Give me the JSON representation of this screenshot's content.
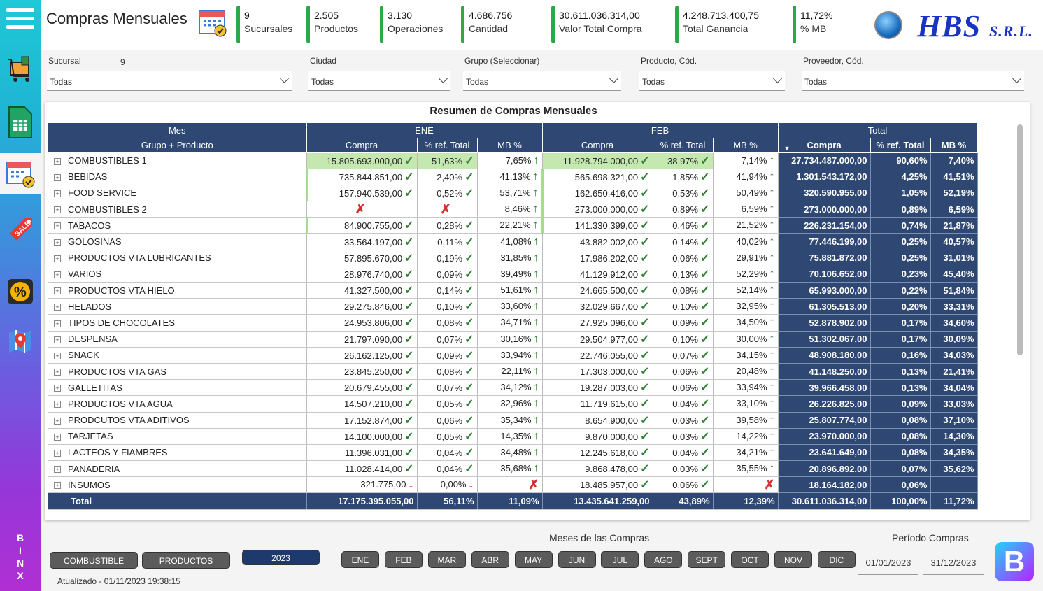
{
  "header": {
    "title": "Compras Mensuales",
    "kpis": [
      {
        "value": "9",
        "label": "Sucursales"
      },
      {
        "value": "2.505",
        "label": "Productos"
      },
      {
        "value": "3.130",
        "label": "Operaciones"
      },
      {
        "value": "4.686.756",
        "label": "Cantidad"
      },
      {
        "value": "30.611.036.314,00",
        "label": "Valor Total Compra"
      },
      {
        "value": "4.248.713.400,75",
        "label": "Total Ganancia"
      },
      {
        "value": "11,72%",
        "label": "% MB"
      }
    ],
    "logo": "HBS",
    "logo_suffix": "S.R.L."
  },
  "filters": [
    {
      "label": "Sucursal",
      "count": "9",
      "value": "Todas"
    },
    {
      "label": "Ciudad",
      "value": "Todas"
    },
    {
      "label": "Grupo (Seleccionar)",
      "value": "Todas"
    },
    {
      "label": "Producto, Cód.",
      "value": "Todas"
    },
    {
      "label": "Proveedor, Cód.",
      "value": "Todas"
    }
  ],
  "table": {
    "title": "Resumen de Compras Mensuales",
    "col_mes": "Mes",
    "col_group": "Grupo + Producto",
    "months": [
      "ENE",
      "FEB"
    ],
    "total_label": "Total",
    "sub": [
      "Compra",
      "% ref. Total",
      "MB %"
    ],
    "rows": [
      [
        "COMBUSTIBLES 1",
        "15.805.693.000,00",
        "51,63%",
        "7,65%",
        "11.928.794.000,00",
        "38,97%",
        "7,14%",
        "27.734.487.000,00",
        "90,60%",
        "7,40%"
      ],
      [
        "BEBIDAS",
        "735.844.851,00",
        "2,40%",
        "41,13%",
        "565.698.321,00",
        "1,85%",
        "41,94%",
        "1.301.543.172,00",
        "4,25%",
        "41,51%"
      ],
      [
        "FOOD SERVICE",
        "157.940.539,00",
        "0,52%",
        "53,71%",
        "162.650.416,00",
        "0,53%",
        "50,49%",
        "320.590.955,00",
        "1,05%",
        "52,19%"
      ],
      [
        "COMBUSTIBLES 2",
        "",
        "",
        "8,46%",
        "273.000.000,00",
        "0,89%",
        "6,59%",
        "273.000.000,00",
        "0,89%",
        "6,59%"
      ],
      [
        "TABACOS",
        "84.900.755,00",
        "0,28%",
        "22,21%",
        "141.330.399,00",
        "0,46%",
        "21,52%",
        "226.231.154,00",
        "0,74%",
        "21,87%"
      ],
      [
        "GOLOSINAS",
        "33.564.197,00",
        "0,11%",
        "41,08%",
        "43.882.002,00",
        "0,14%",
        "40,02%",
        "77.446.199,00",
        "0,25%",
        "40,57%"
      ],
      [
        "PRODUCTOS VTA LUBRICANTES",
        "57.895.670,00",
        "0,19%",
        "31,85%",
        "17.986.202,00",
        "0,06%",
        "29,91%",
        "75.881.872,00",
        "0,25%",
        "31,01%"
      ],
      [
        "VARIOS",
        "28.976.740,00",
        "0,09%",
        "39,49%",
        "41.129.912,00",
        "0,13%",
        "52,29%",
        "70.106.652,00",
        "0,23%",
        "45,40%"
      ],
      [
        "PRODUCTOS VTA HIELO",
        "41.327.500,00",
        "0,14%",
        "51,61%",
        "24.665.500,00",
        "0,08%",
        "52,14%",
        "65.993.000,00",
        "0,22%",
        "51,84%"
      ],
      [
        "HELADOS",
        "29.275.846,00",
        "0,10%",
        "33,60%",
        "32.029.667,00",
        "0,10%",
        "32,95%",
        "61.305.513,00",
        "0,20%",
        "33,31%"
      ],
      [
        "TIPOS DE CHOCOLATES",
        "24.953.806,00",
        "0,08%",
        "34,71%",
        "27.925.096,00",
        "0,09%",
        "34,50%",
        "52.878.902,00",
        "0,17%",
        "34,60%"
      ],
      [
        "DESPENSA",
        "21.797.090,00",
        "0,07%",
        "30,16%",
        "29.504.977,00",
        "0,10%",
        "30,00%",
        "51.302.067,00",
        "0,17%",
        "30,09%"
      ],
      [
        "SNACK",
        "26.162.125,00",
        "0,09%",
        "33,94%",
        "22.746.055,00",
        "0,07%",
        "34,15%",
        "48.908.180,00",
        "0,16%",
        "34,03%"
      ],
      [
        "PRODUCTOS VTA GAS",
        "23.845.250,00",
        "0,08%",
        "22,11%",
        "17.303.000,00",
        "0,06%",
        "20,48%",
        "41.148.250,00",
        "0,13%",
        "21,41%"
      ],
      [
        "GALLETITAS",
        "20.679.455,00",
        "0,07%",
        "34,12%",
        "19.287.003,00",
        "0,06%",
        "33,94%",
        "39.966.458,00",
        "0,13%",
        "34,04%"
      ],
      [
        "PRODUCTOS VTA AGUA",
        "14.507.210,00",
        "0,05%",
        "32,96%",
        "11.719.615,00",
        "0,04%",
        "33,10%",
        "26.226.825,00",
        "0,09%",
        "33,03%"
      ],
      [
        "PRODCUTOS VTA ADITIVOS",
        "17.152.874,00",
        "0,06%",
        "35,34%",
        "8.654.900,00",
        "0,03%",
        "39,58%",
        "25.807.774,00",
        "0,08%",
        "37,10%"
      ],
      [
        "TARJETAS",
        "14.100.000,00",
        "0,05%",
        "14,35%",
        "9.870.000,00",
        "0,03%",
        "14,22%",
        "23.970.000,00",
        "0,08%",
        "14,30%"
      ],
      [
        "LACTEOS Y FIAMBRES",
        "11.396.031,00",
        "0,04%",
        "34,48%",
        "12.245.618,00",
        "0,04%",
        "34,21%",
        "23.641.649,00",
        "0,08%",
        "34,35%"
      ],
      [
        "PANADERIA",
        "11.028.414,00",
        "0,04%",
        "35,68%",
        "9.868.478,00",
        "0,03%",
        "35,55%",
        "20.896.892,00",
        "0,07%",
        "35,62%"
      ],
      [
        "INSUMOS",
        "-321.775,00",
        "0,00%",
        "",
        "18.485.957,00",
        "0,06%",
        "",
        "18.164.182,00",
        "0,06%",
        ""
      ]
    ],
    "totals": [
      "Total",
      "17.175.395.055,00",
      "56,11%",
      "11,09%",
      "13.435.641.259,00",
      "43,89%",
      "12,39%",
      "30.611.036.314,00",
      "100,00%",
      "11,72%"
    ]
  },
  "bottom": {
    "buttons": [
      "COMBUSTIBLE",
      "PRODUCTOS"
    ],
    "year": "2023",
    "months_label": "Meses de las Compras",
    "months": [
      "ENE",
      "FEB",
      "MAR",
      "ABR",
      "MAY",
      "JUN",
      "JUL",
      "AGO",
      "SEPT",
      "OCT",
      "NOV",
      "DIC"
    ],
    "period_label": "Período Compras",
    "date_from": "01/01/2023",
    "date_to": "31/12/2023",
    "updated": "Atualizado - 01/11/2023 19:38:15",
    "brand_vertical": "BINX"
  }
}
